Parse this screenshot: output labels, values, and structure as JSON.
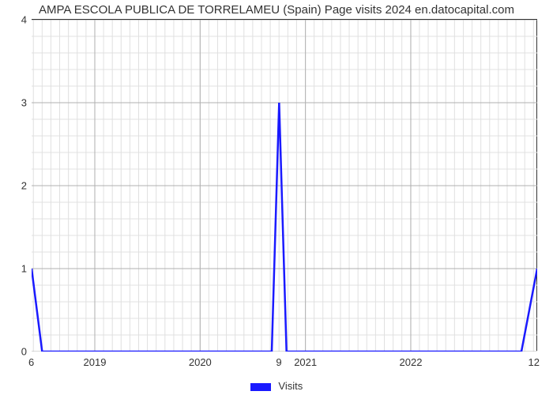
{
  "chart": {
    "type": "line",
    "title": "AMPA ESCOLA PUBLICA DE TORRELAMEU (Spain) Page visits 2024 en.datocapital.com",
    "title_fontsize": 15,
    "title_color": "#333333",
    "background_color": "#ffffff",
    "plot_border_color": "#333333",
    "x": {
      "min": 2018.4,
      "max": 2023.2,
      "major_ticks": [
        2019,
        2020,
        2021,
        2022
      ],
      "corner_left": "6",
      "corner_right": "12",
      "label_fontsize": 13
    },
    "y": {
      "min": 0,
      "max": 4,
      "major_ticks": [
        0,
        1,
        2,
        3,
        4
      ],
      "corner_bottom_left_extra": "9",
      "label_fontsize": 13
    },
    "grid": {
      "major_color": "#b0b0b0",
      "minor_color": "#e0e0e0",
      "minor_x_step": 0.0833,
      "minor_y_step": 0.2
    },
    "series": [
      {
        "name": "Visits",
        "color": "#1a1aff",
        "line_width": 2.5,
        "points": [
          [
            2018.4,
            1.0
          ],
          [
            2018.5,
            0.0
          ],
          [
            2020.68,
            0.0
          ],
          [
            2020.75,
            3.0
          ],
          [
            2020.82,
            0.0
          ],
          [
            2023.05,
            0.0
          ],
          [
            2023.2,
            1.0
          ]
        ]
      }
    ],
    "legend": {
      "label": "Visits",
      "swatch_color": "#1a1aff",
      "text_color": "#333333",
      "fontsize": 13
    }
  }
}
